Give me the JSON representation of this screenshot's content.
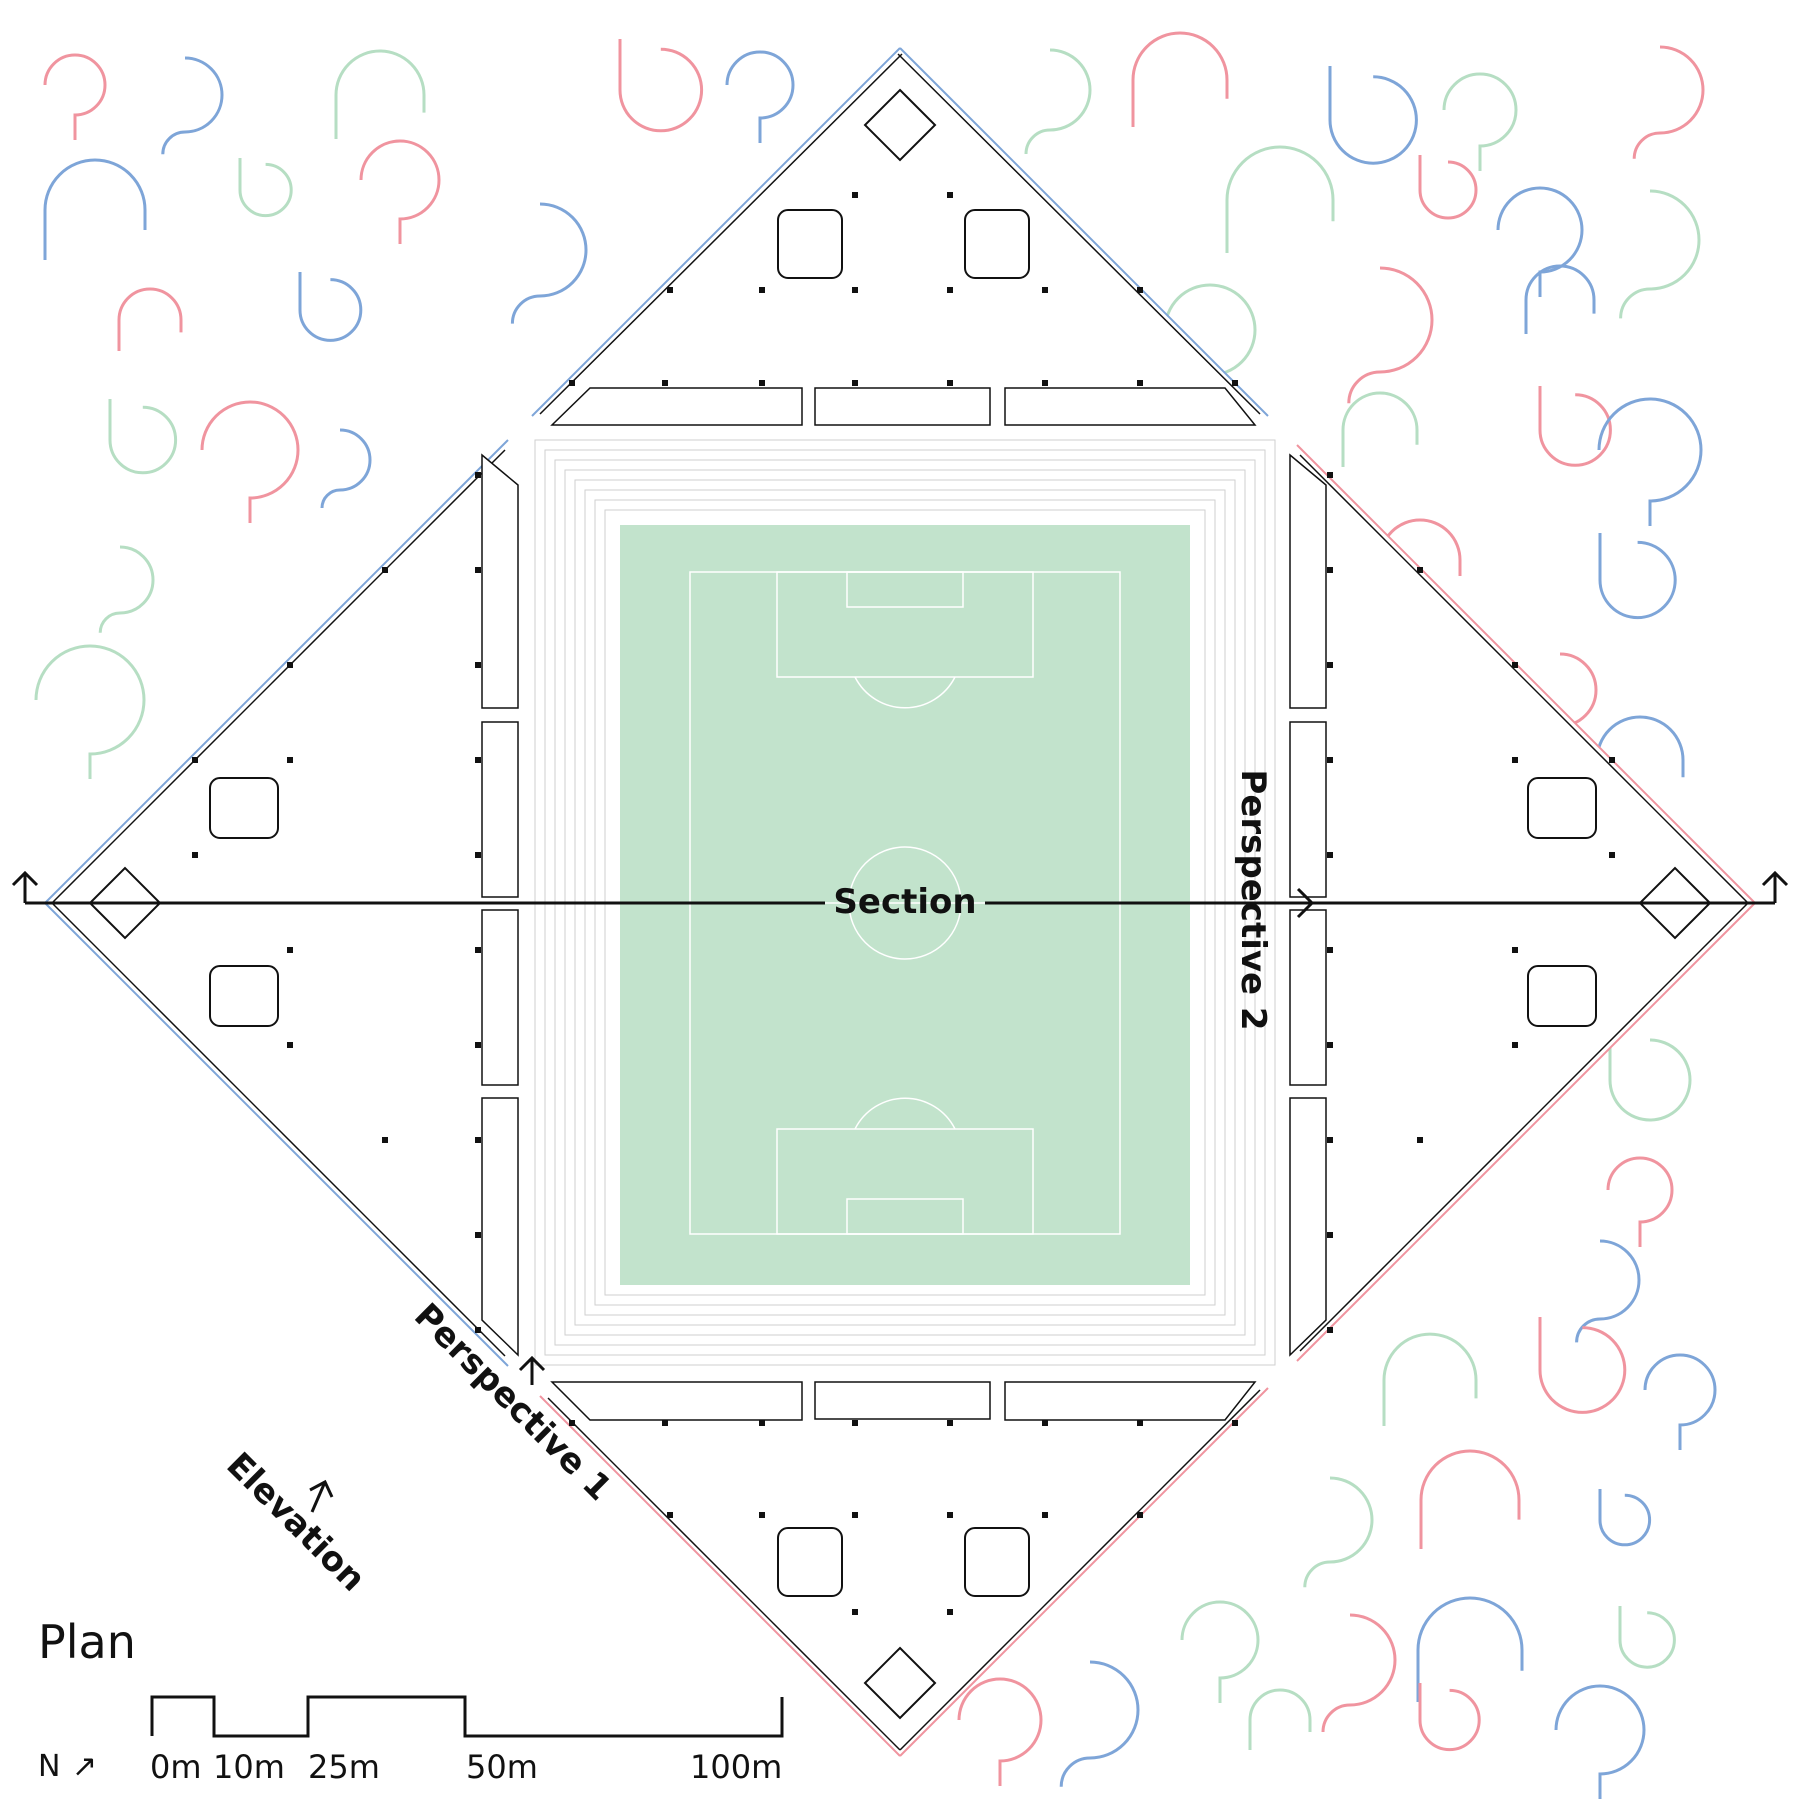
{
  "diagram": {
    "title": "Plan",
    "section_label": "Section",
    "perspective1_label": "Perspective 1",
    "perspective2_label": "Perspective 2",
    "elevation_label": "Elevation",
    "north_label": "N",
    "north_arrow_glyph": "↗",
    "scale_ticks": [
      "0m",
      "10m",
      "25m",
      "50m",
      "100m"
    ]
  },
  "colors": {
    "pitch": "#c2e3cc",
    "pink": "#f0949f",
    "blue": "#7ea5d8",
    "green": "#b6dec3",
    "ink": "#111111",
    "stand": "#cfcfcf"
  }
}
